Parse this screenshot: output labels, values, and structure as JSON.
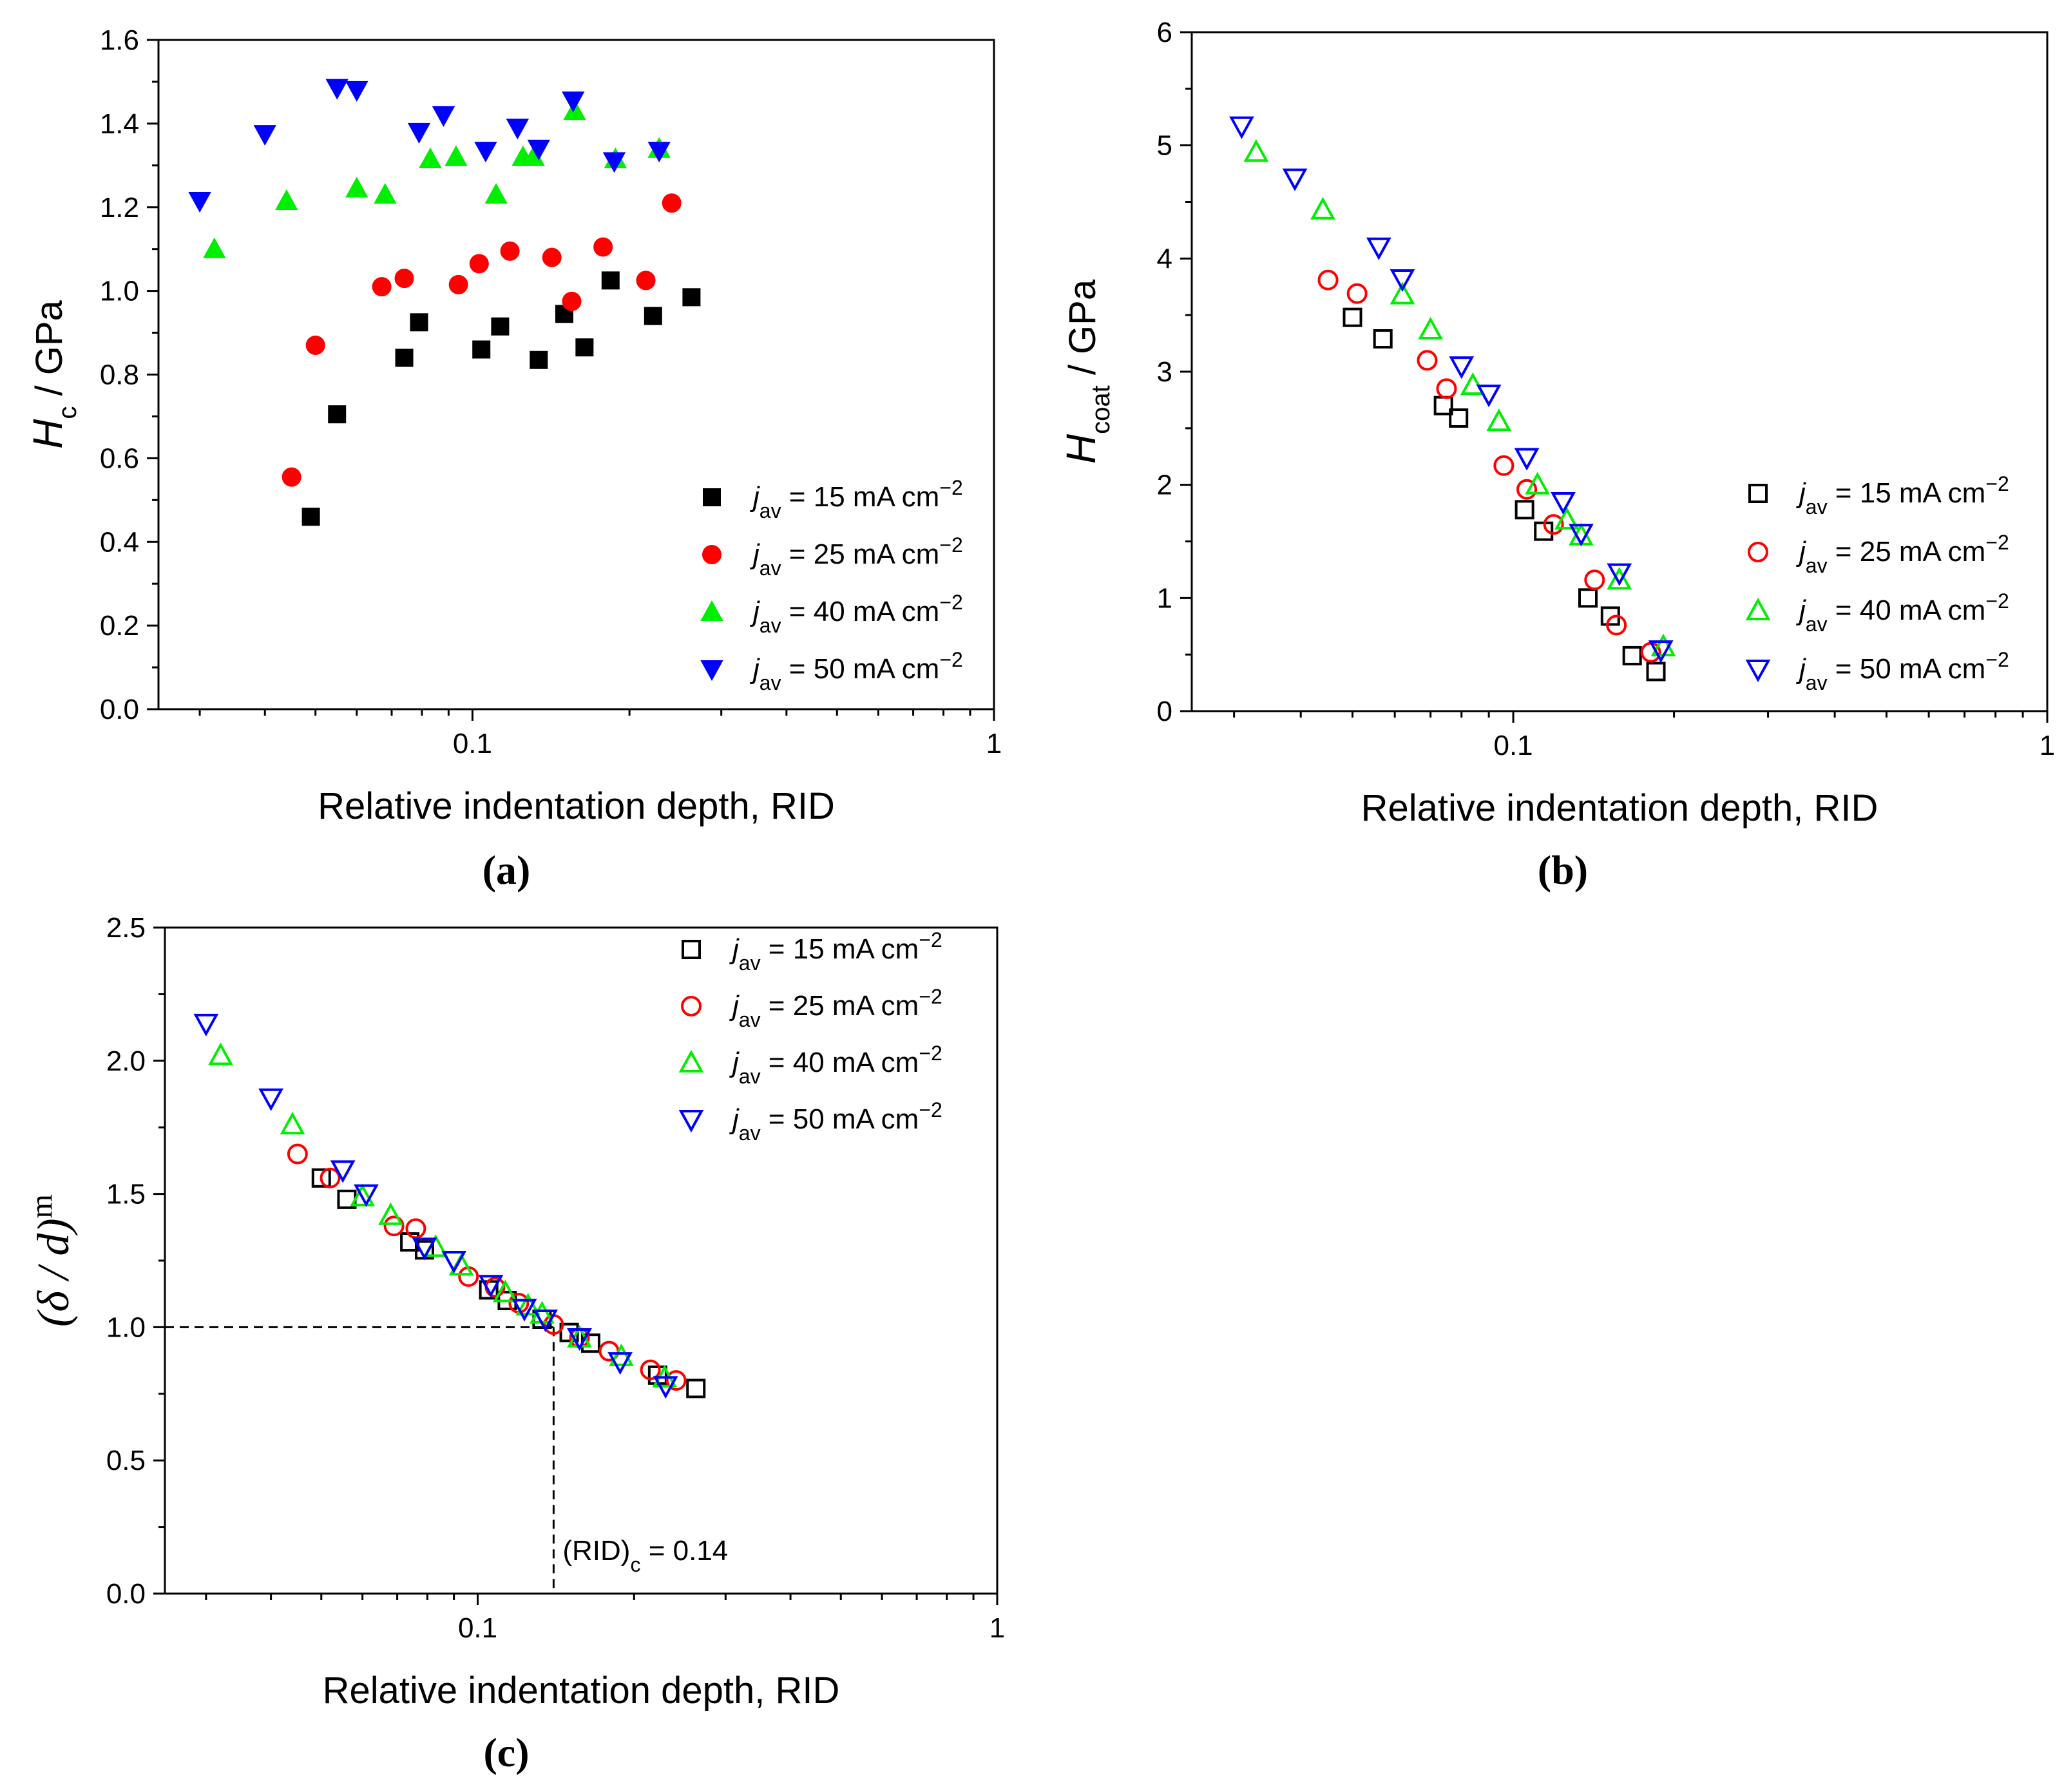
{
  "figure": {
    "panel_labels": [
      "(a)",
      "(b)",
      "(c)"
    ]
  },
  "legend": {
    "prefix": "j",
    "subscript": "av",
    "units": "mA cm",
    "exponent": "−2",
    "equals": "="
  },
  "colors": {
    "j15": "#000000",
    "j25": "#ff0000",
    "j40": "#00ee00",
    "j50": "#0000ff",
    "axis": "#000000",
    "guide": "#000000"
  },
  "chart_data": [
    {
      "id": "a",
      "type": "scatter",
      "x_scale": "log",
      "xlim": [
        0.025,
        1
      ],
      "ylim": [
        0.0,
        1.6
      ],
      "x_ticks": [
        "0.1",
        "1"
      ],
      "y_ticks": [
        "0.0",
        "0.2",
        "0.4",
        "0.6",
        "0.8",
        "1.0",
        "1.2",
        "1.4",
        "1.6"
      ],
      "xlabel": "Relative indentation depth, RID",
      "ylabel_symbol": "H",
      "ylabel_sub": "c",
      "ylabel_unit": " / GPa",
      "marker_fill": "filled",
      "series": [
        {
          "name": "15",
          "label": "15",
          "marker": "square",
          "color_key": "j15",
          "x": [
            0.049,
            0.055,
            0.074,
            0.079,
            0.104,
            0.113,
            0.134,
            0.15,
            0.164,
            0.184,
            0.222,
            0.263
          ],
          "y": [
            0.46,
            0.705,
            0.84,
            0.925,
            0.86,
            0.915,
            0.835,
            0.945,
            0.865,
            1.025,
            0.94,
            0.985
          ]
        },
        {
          "name": "25",
          "label": "25",
          "marker": "circle",
          "color_key": "j25",
          "x": [
            0.045,
            0.05,
            0.067,
            0.074,
            0.094,
            0.103,
            0.118,
            0.142,
            0.155,
            0.178,
            0.215,
            0.241
          ],
          "y": [
            0.555,
            0.87,
            1.01,
            1.03,
            1.015,
            1.065,
            1.095,
            1.08,
            0.975,
            1.105,
            1.025,
            1.21
          ]
        },
        {
          "name": "40",
          "label": "40",
          "marker": "triangle-up",
          "color_key": "j40",
          "x": [
            0.032,
            0.044,
            0.06,
            0.068,
            0.083,
            0.093,
            0.111,
            0.125,
            0.131,
            0.157,
            0.188,
            0.228
          ],
          "y": [
            1.1,
            1.215,
            1.245,
            1.23,
            1.315,
            1.32,
            1.23,
            1.32,
            1.32,
            1.43,
            1.315,
            1.34
          ]
        },
        {
          "name": "50",
          "label": "50",
          "marker": "triangle-down",
          "color_key": "j50",
          "x": [
            0.03,
            0.04,
            0.055,
            0.06,
            0.079,
            0.088,
            0.106,
            0.122,
            0.134,
            0.156,
            0.187,
            0.228
          ],
          "y": [
            1.215,
            1.375,
            1.485,
            1.48,
            1.38,
            1.42,
            1.335,
            1.39,
            1.34,
            1.455,
            1.31,
            1.335
          ]
        }
      ]
    },
    {
      "id": "b",
      "type": "scatter",
      "x_scale": "log",
      "xlim": [
        0.025,
        1
      ],
      "ylim": [
        0,
        6
      ],
      "x_ticks": [
        "0.1",
        "1"
      ],
      "y_ticks": [
        "0",
        "1",
        "2",
        "3",
        "4",
        "5",
        "6"
      ],
      "xlabel": "Relative indentation depth, RID",
      "ylabel_symbol": "H",
      "ylabel_sub": "coat",
      "ylabel_unit": " / GPa",
      "marker_fill": "open",
      "series": [
        {
          "name": "15",
          "label": "15",
          "marker": "square",
          "color_key": "j15",
          "x": [
            0.05,
            0.057,
            0.074,
            0.079,
            0.105,
            0.114,
            0.138,
            0.152,
            0.167,
            0.185
          ],
          "y": [
            3.48,
            3.29,
            2.7,
            2.59,
            1.78,
            1.59,
            1.0,
            0.84,
            0.49,
            0.35
          ]
        },
        {
          "name": "25",
          "label": "25",
          "marker": "circle",
          "color_key": "j25",
          "x": [
            0.045,
            0.051,
            0.069,
            0.075,
            0.096,
            0.106,
            0.119,
            0.142,
            0.156,
            0.181
          ],
          "y": [
            3.81,
            3.69,
            3.1,
            2.85,
            2.17,
            1.96,
            1.65,
            1.16,
            0.76,
            0.52
          ]
        },
        {
          "name": "40",
          "label": "40",
          "marker": "triangle-up",
          "color_key": "j40",
          "x": [
            0.033,
            0.044,
            0.062,
            0.07,
            0.084,
            0.094,
            0.111,
            0.126,
            0.134,
            0.158,
            0.191
          ],
          "y": [
            4.94,
            4.43,
            3.68,
            3.37,
            2.88,
            2.56,
            2.0,
            1.69,
            1.55,
            1.16,
            0.57
          ]
        },
        {
          "name": "50",
          "label": "50",
          "marker": "triangle-down",
          "color_key": "j50",
          "x": [
            0.031,
            0.039,
            0.056,
            0.062,
            0.08,
            0.09,
            0.106,
            0.124,
            0.134,
            0.158,
            0.189
          ],
          "y": [
            5.17,
            4.71,
            4.1,
            3.82,
            3.05,
            2.8,
            2.24,
            1.85,
            1.57,
            1.22,
            0.54
          ]
        }
      ]
    },
    {
      "id": "c",
      "type": "scatter",
      "x_scale": "log",
      "xlim": [
        0.025,
        1
      ],
      "ylim": [
        0.0,
        2.5
      ],
      "x_ticks": [
        "0.1",
        "1"
      ],
      "y_ticks": [
        "0.0",
        "0.5",
        "1.0",
        "1.5",
        "2.0",
        "2.5"
      ],
      "xlabel": "Relative indentation depth, RID",
      "ylabel_expr": "(δ / d)",
      "ylabel_sup": "m",
      "marker_fill": "open",
      "annotation": {
        "label": "(RID)",
        "sub": "c",
        "value": " = 0.14",
        "x": 0.14,
        "y": 1.0
      },
      "series": [
        {
          "name": "15",
          "label": "15",
          "marker": "square",
          "color_key": "j15",
          "x": [
            0.05,
            0.056,
            0.074,
            0.079,
            0.105,
            0.114,
            0.133,
            0.15,
            0.165,
            0.222,
            0.263
          ],
          "y": [
            1.56,
            1.48,
            1.32,
            1.29,
            1.14,
            1.1,
            1.03,
            0.98,
            0.94,
            0.82,
            0.77
          ]
        },
        {
          "name": "25",
          "label": "25",
          "marker": "circle",
          "color_key": "j25",
          "x": [
            0.045,
            0.052,
            0.069,
            0.076,
            0.096,
            0.108,
            0.12,
            0.14,
            0.157,
            0.179,
            0.215,
            0.241
          ],
          "y": [
            1.65,
            1.56,
            1.38,
            1.37,
            1.19,
            1.15,
            1.09,
            1.01,
            0.96,
            0.91,
            0.84,
            0.8
          ]
        },
        {
          "name": "40",
          "label": "40",
          "marker": "triangle-up",
          "color_key": "j40",
          "x": [
            0.032,
            0.044,
            0.06,
            0.068,
            0.083,
            0.093,
            0.113,
            0.125,
            0.133,
            0.157,
            0.189,
            0.229
          ],
          "y": [
            2.02,
            1.76,
            1.49,
            1.42,
            1.3,
            1.23,
            1.13,
            1.08,
            1.05,
            0.96,
            0.89,
            0.81
          ]
        },
        {
          "name": "50",
          "label": "50",
          "marker": "triangle-down",
          "color_key": "j50",
          "x": [
            0.03,
            0.04,
            0.055,
            0.061,
            0.079,
            0.09,
            0.106,
            0.123,
            0.135,
            0.157,
            0.188,
            0.23
          ],
          "y": [
            2.14,
            1.86,
            1.59,
            1.5,
            1.3,
            1.25,
            1.16,
            1.07,
            1.03,
            0.96,
            0.87,
            0.78
          ]
        }
      ]
    }
  ]
}
